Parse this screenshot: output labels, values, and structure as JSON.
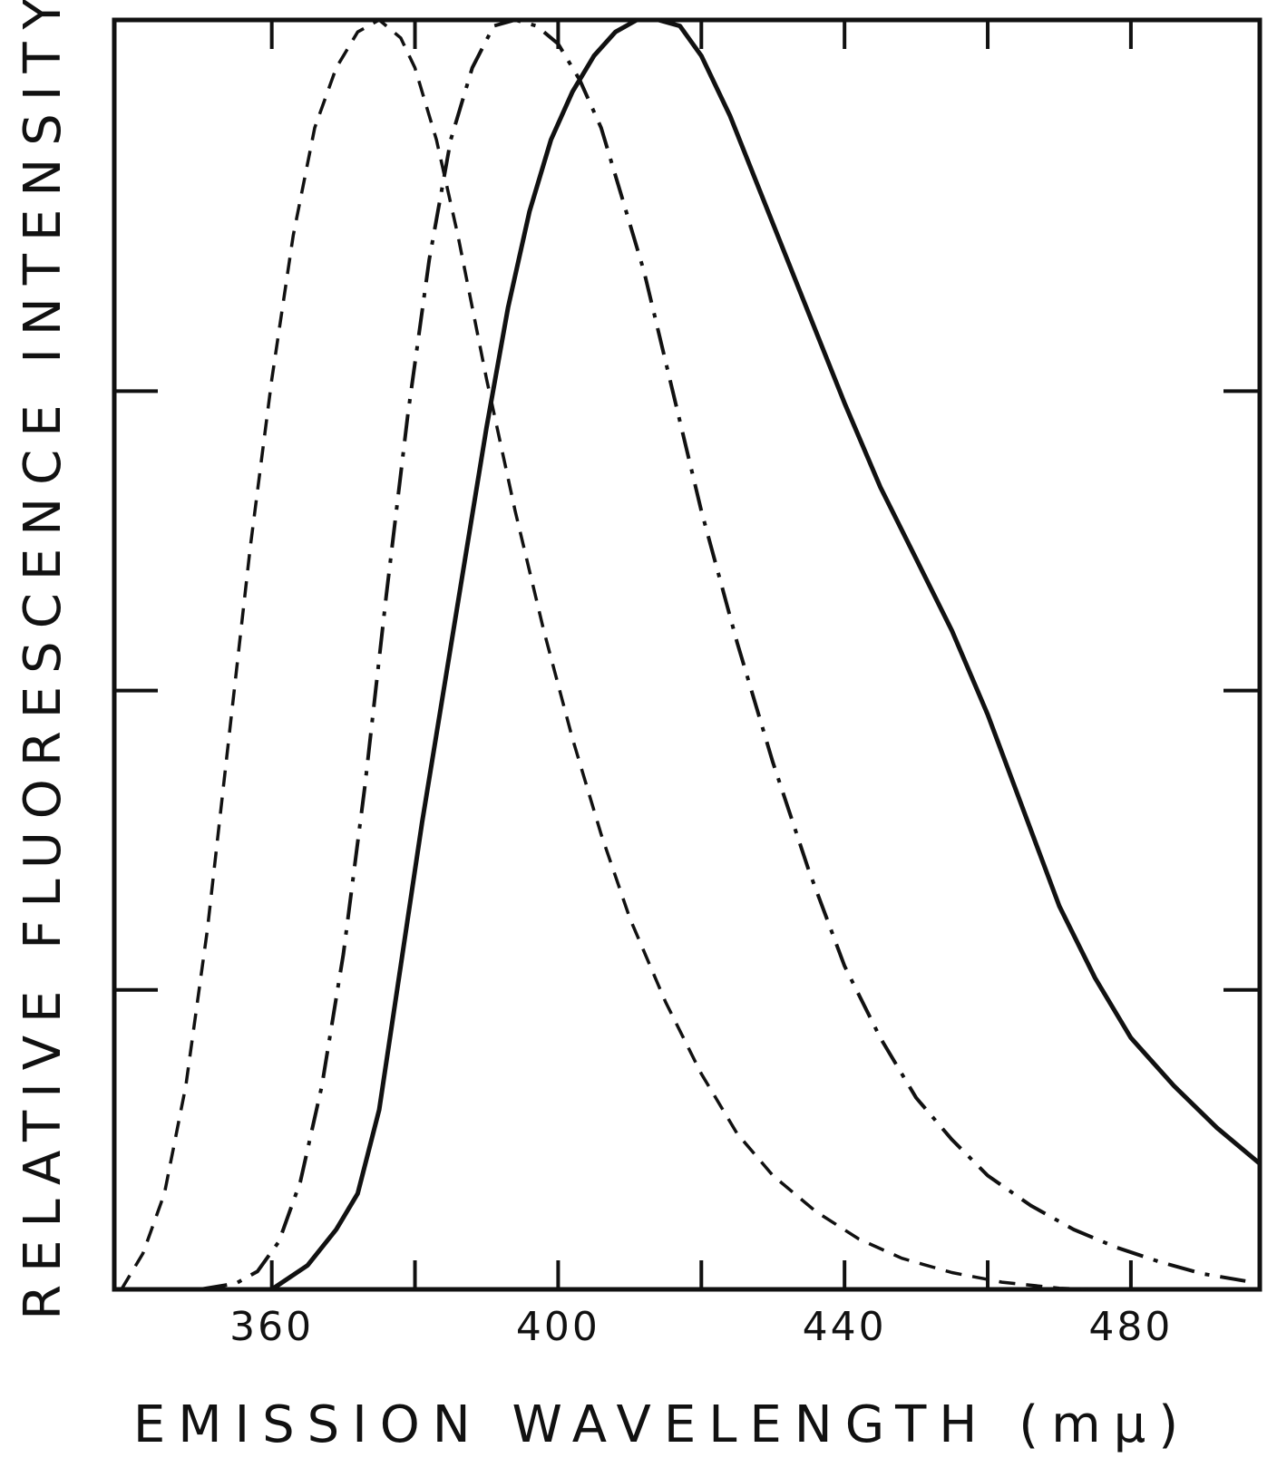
{
  "chart_data": {
    "type": "line",
    "xlabel": "EMISSION WAVELENGTH (mμ)",
    "ylabel": "RELATIVE FLUORESCENCE INTENSITY",
    "xlim": [
      338,
      498
    ],
    "ylim": [
      0,
      1.06
    ],
    "x_major_ticks": [
      360,
      400,
      440,
      480
    ],
    "x_minor_ticks": [
      380,
      420,
      460
    ],
    "y_ticks": [
      0.25,
      0.5,
      0.75
    ],
    "grid": false,
    "legend": "none",
    "series": [
      {
        "line_style": "dashed",
        "color": "#111111",
        "x": [
          339,
          342,
          345,
          348,
          351,
          354,
          357,
          360,
          363,
          366,
          369,
          372,
          375,
          378,
          380,
          383,
          386,
          390,
          394,
          398,
          402,
          406,
          410,
          415,
          420,
          425,
          430,
          436,
          442,
          448,
          455,
          462,
          470,
          474
        ],
        "y": [
          0.0,
          0.03,
          0.08,
          0.17,
          0.3,
          0.46,
          0.62,
          0.76,
          0.88,
          0.97,
          1.02,
          1.05,
          1.06,
          1.045,
          1.02,
          0.96,
          0.88,
          0.76,
          0.65,
          0.55,
          0.46,
          0.38,
          0.31,
          0.24,
          0.18,
          0.13,
          0.095,
          0.065,
          0.042,
          0.026,
          0.014,
          0.006,
          0.001,
          0.0
        ]
      },
      {
        "line_style": "dash-dot",
        "color": "#111111",
        "x": [
          350,
          355,
          358,
          361,
          364,
          367,
          370,
          373,
          376,
          379,
          382,
          385,
          388,
          391,
          394,
          397,
          400,
          403,
          406,
          409,
          412,
          416,
          420,
          425,
          430,
          435,
          440,
          445,
          450,
          455,
          460,
          466,
          472,
          478,
          484,
          490,
          496
        ],
        "y": [
          0.0,
          0.005,
          0.015,
          0.04,
          0.09,
          0.17,
          0.28,
          0.42,
          0.58,
          0.73,
          0.86,
          0.96,
          1.02,
          1.055,
          1.06,
          1.055,
          1.04,
          1.01,
          0.97,
          0.91,
          0.85,
          0.75,
          0.65,
          0.54,
          0.44,
          0.35,
          0.27,
          0.21,
          0.16,
          0.125,
          0.095,
          0.07,
          0.05,
          0.035,
          0.023,
          0.013,
          0.007
        ]
      },
      {
        "line_style": "solid",
        "color": "#111111",
        "x": [
          360,
          365,
          369,
          372,
          375,
          378,
          381,
          384,
          387,
          390,
          393,
          396,
          399,
          402,
          405,
          408,
          411,
          414,
          417,
          420,
          424,
          428,
          432,
          436,
          440,
          445,
          450,
          455,
          460,
          465,
          470,
          475,
          480,
          486,
          492,
          498
        ],
        "y": [
          0.0,
          0.02,
          0.05,
          0.08,
          0.15,
          0.27,
          0.39,
          0.5,
          0.61,
          0.72,
          0.82,
          0.9,
          0.96,
          1.0,
          1.03,
          1.05,
          1.06,
          1.06,
          1.055,
          1.03,
          0.98,
          0.92,
          0.86,
          0.8,
          0.74,
          0.67,
          0.61,
          0.55,
          0.48,
          0.4,
          0.32,
          0.26,
          0.21,
          0.17,
          0.135,
          0.105
        ]
      }
    ]
  }
}
